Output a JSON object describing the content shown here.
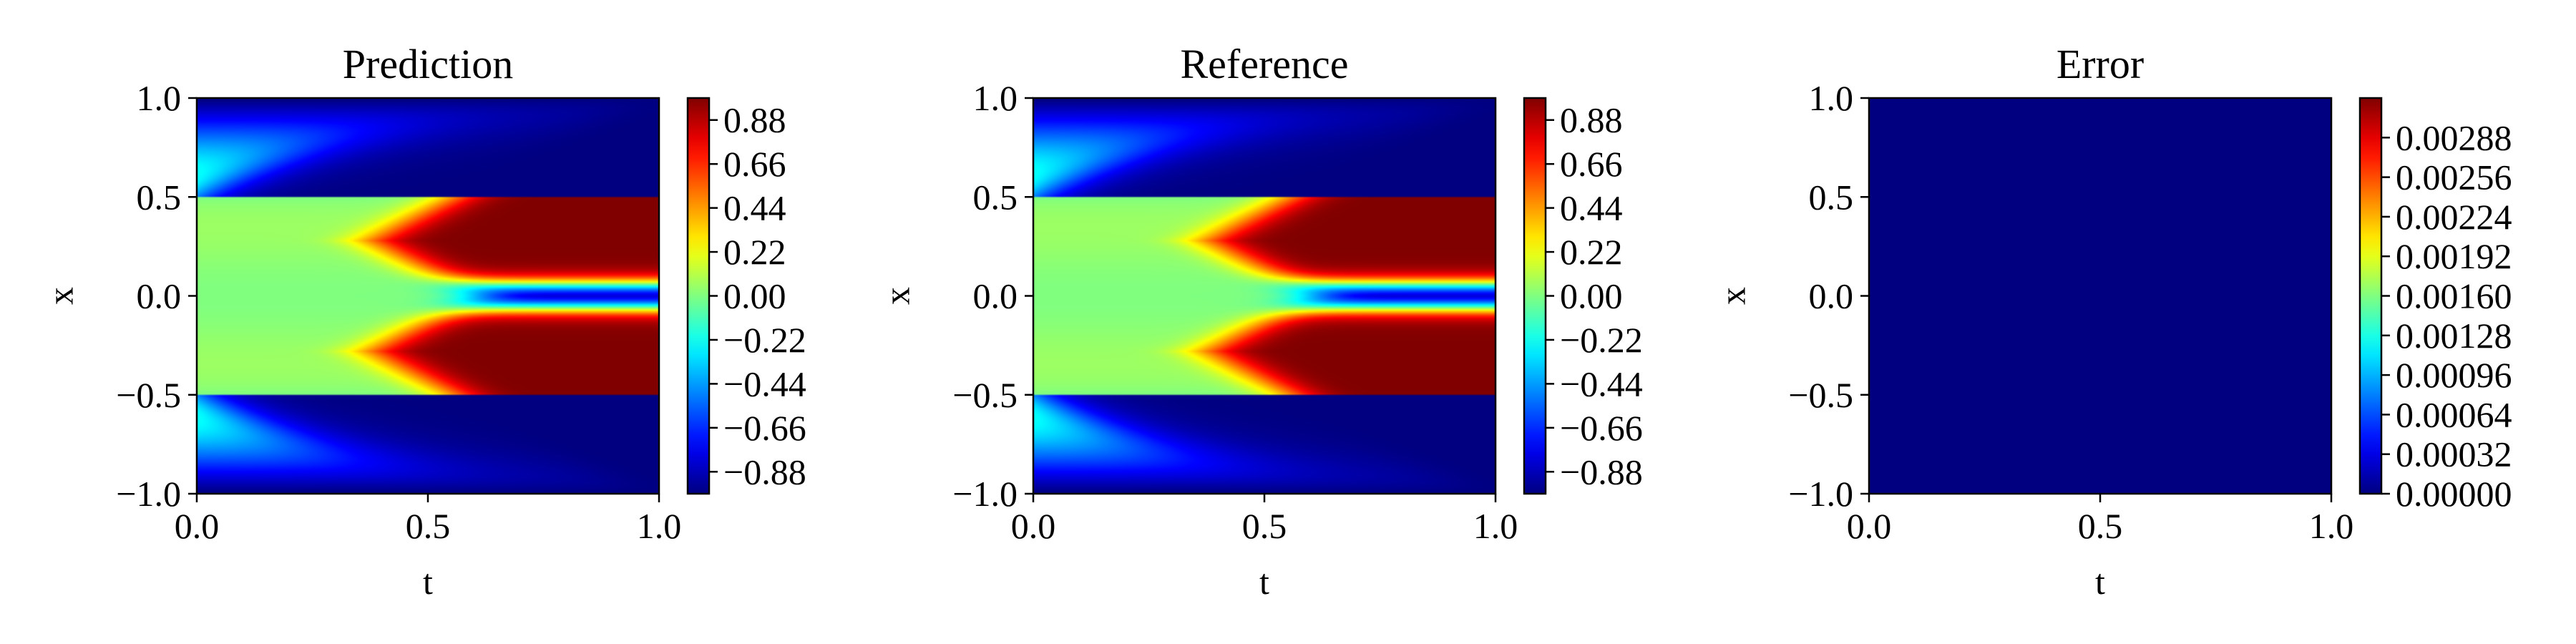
{
  "chart_data": [
    {
      "type": "heatmap",
      "title": "Prediction",
      "xlabel": "t",
      "ylabel": "x",
      "xlim": [
        0.0,
        1.0
      ],
      "ylim": [
        -1.0,
        1.0
      ],
      "xticks": [
        "0.0",
        "0.5",
        "1.0"
      ],
      "yticks": [
        "−1.0",
        "−0.5",
        "0.0",
        "0.5",
        "1.0"
      ],
      "colormap": "jet",
      "field": "allen-cahn",
      "colorbar": {
        "min": -0.99,
        "max": 0.99,
        "ticks": [
          0.88,
          0.66,
          0.44,
          0.22,
          0.0,
          -0.22,
          -0.44,
          -0.66,
          -0.88
        ],
        "tick_labels": [
          "0.88",
          "0.66",
          "0.44",
          "0.22",
          "0.00",
          "−0.22",
          "−0.44",
          "−0.66",
          "−0.88"
        ]
      }
    },
    {
      "type": "heatmap",
      "title": "Reference",
      "xlabel": "t",
      "ylabel": "x",
      "xlim": [
        0.0,
        1.0
      ],
      "ylim": [
        -1.0,
        1.0
      ],
      "xticks": [
        "0.0",
        "0.5",
        "1.0"
      ],
      "yticks": [
        "−1.0",
        "−0.5",
        "0.0",
        "0.5",
        "1.0"
      ],
      "colormap": "jet",
      "field": "allen-cahn",
      "colorbar": {
        "min": -0.99,
        "max": 0.99,
        "ticks": [
          0.88,
          0.66,
          0.44,
          0.22,
          0.0,
          -0.22,
          -0.44,
          -0.66,
          -0.88
        ],
        "tick_labels": [
          "0.88",
          "0.66",
          "0.44",
          "0.22",
          "0.00",
          "−0.22",
          "−0.44",
          "−0.66",
          "−0.88"
        ]
      }
    },
    {
      "type": "heatmap",
      "title": "Error",
      "xlabel": "t",
      "ylabel": "x",
      "xlim": [
        0.0,
        1.0
      ],
      "ylim": [
        -1.0,
        1.0
      ],
      "xticks": [
        "0.0",
        "0.5",
        "1.0"
      ],
      "yticks": [
        "−1.0",
        "−0.5",
        "0.0",
        "0.5",
        "1.0"
      ],
      "colormap": "jet",
      "field": "near-zero",
      "colorbar": {
        "min": 0.0,
        "max": 0.0032,
        "ticks": [
          0.00288,
          0.00256,
          0.00224,
          0.00192,
          0.0016,
          0.00128,
          0.00096,
          0.00064,
          0.00032,
          0.0
        ],
        "tick_labels": [
          "0.00288",
          "0.00256",
          "0.00224",
          "0.00192",
          "0.00160",
          "0.00128",
          "0.00096",
          "0.00064",
          "0.00032",
          "0.00000"
        ]
      }
    }
  ]
}
